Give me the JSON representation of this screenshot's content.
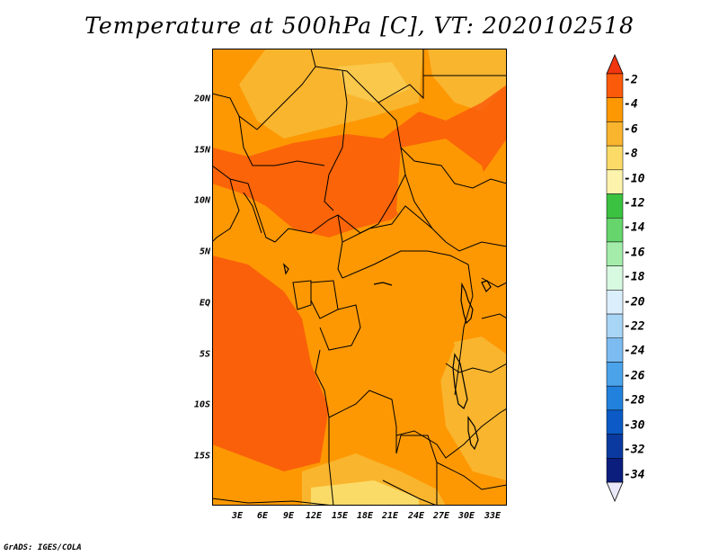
{
  "title": "Temperature at 500hPa [C], VT: 2020102518",
  "credit": "GrADS: IGES/COLA",
  "map": {
    "variable": "Temperature at 500hPa",
    "units": "C",
    "valid_time": "2020102518",
    "region": "Central Africa",
    "lon_range": [
      0,
      34.5
    ],
    "lat_range": [
      -19.5,
      24.5
    ],
    "lat_ticks": [
      "20N",
      "15N",
      "10N",
      "5N",
      "EQ",
      "5S",
      "10S",
      "15S"
    ],
    "lon_ticks": [
      "3E",
      "6E",
      "9E",
      "12E",
      "15E",
      "18E",
      "21E",
      "24E",
      "27E",
      "30E",
      "33E"
    ]
  },
  "colorbar": {
    "labels": [
      "-2",
      "-4",
      "-6",
      "-8",
      "-10",
      "-12",
      "-14",
      "-16",
      "-18",
      "-20",
      "-22",
      "-24",
      "-26",
      "-28",
      "-30",
      "-32",
      "-34"
    ],
    "colors": [
      "#f0360f",
      "#fa5a0a",
      "#fd9803",
      "#f9b52e",
      "#fbdb68",
      "#fdf3ad",
      "#3bc240",
      "#65d56c",
      "#a3ecaa",
      "#d7f9e0",
      "#dbeefb",
      "#a8d4f6",
      "#7cbcf1",
      "#4ba3e9",
      "#2181dc",
      "#0b5ac6",
      "#0a3aa0",
      "#0b1d7d",
      "#e8e8f8"
    ],
    "contour_levels_shown": [
      "-4",
      "-6",
      "-8",
      "-10"
    ]
  }
}
